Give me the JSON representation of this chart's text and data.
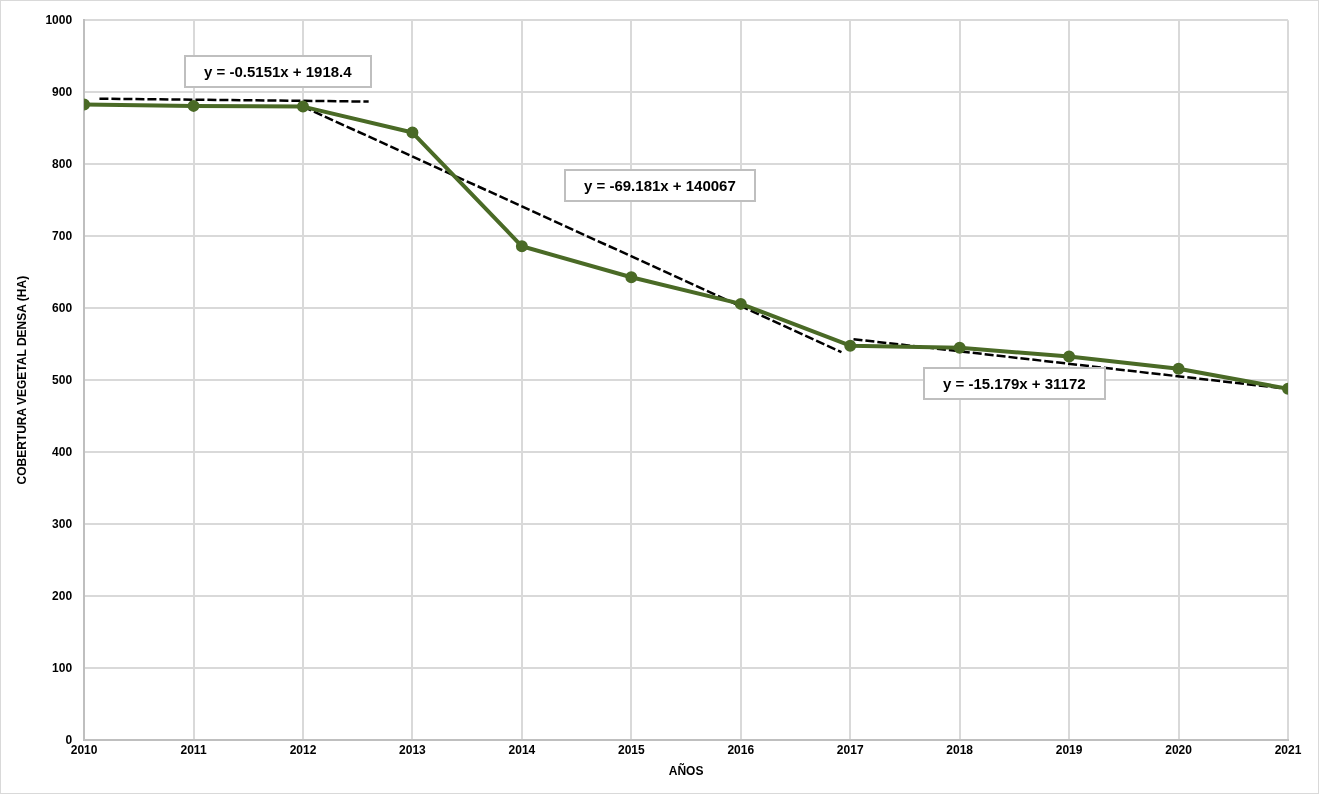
{
  "chart_data": {
    "type": "line",
    "xlabel": "AÑOS",
    "ylabel": "COBERTURA VEGETAL DENSA (HA)",
    "x": [
      2010,
      2011,
      2012,
      2013,
      2014,
      2015,
      2016,
      2017,
      2018,
      2019,
      2020,
      2021
    ],
    "series": [
      {
        "color": "#4a6a26",
        "values": [
          883,
          881,
          880,
          844,
          686,
          643,
          606,
          548,
          545,
          533,
          516,
          488
        ],
        "marker": "circle",
        "line_style": "solid"
      },
      {
        "type": "line",
        "color": "#000000",
        "x": [
          2010.14,
          2012.6
        ],
        "values": [
          891,
          887
        ],
        "marker": "none",
        "line_style": "dashed"
      },
      {
        "type": "line",
        "color": "#000000",
        "x": [
          2012,
          2016.92
        ],
        "values": [
          880,
          539
        ],
        "marker": "none",
        "line_style": "dashed"
      },
      {
        "type": "line",
        "color": "#000000",
        "x": [
          2017.03,
          2021
        ],
        "values": [
          557,
          488
        ],
        "marker": "none",
        "line_style": "dashed"
      }
    ],
    "annotations": [
      "y = -0.5151x + 1918.4",
      "y = -69.181x + 140067",
      "y = -15.179x + 31172"
    ],
    "xlim": [
      2010,
      2021
    ],
    "xticks": [
      2010,
      2011,
      2012,
      2013,
      2014,
      2015,
      2016,
      2017,
      2018,
      2019,
      2020,
      2021
    ],
    "ylim": [
      0,
      1000
    ],
    "yticks": [
      0,
      100,
      200,
      300,
      400,
      500,
      600,
      700,
      800,
      900,
      1000
    ],
    "grid": true,
    "legend": false
  }
}
